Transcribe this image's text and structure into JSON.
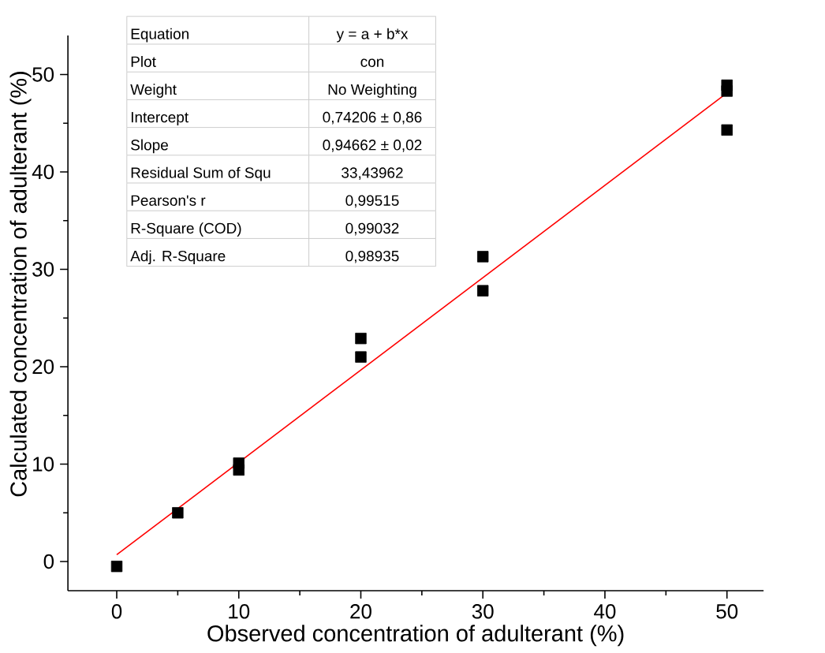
{
  "chart_data": {
    "type": "scatter",
    "xlabel": "Observed concentration of adulterant (%)",
    "ylabel": "Calculated concentration of adulterant (%)",
    "xlim": [
      -4,
      53
    ],
    "ylim": [
      -3,
      54
    ],
    "xticks": [
      0,
      10,
      20,
      30,
      40,
      50
    ],
    "yticks": [
      0,
      10,
      20,
      30,
      40,
      50
    ],
    "marker": "square",
    "series": [
      {
        "color": "#000000",
        "x": [
          0,
          5,
          10,
          10,
          20,
          20,
          30,
          30,
          50,
          50,
          50
        ],
        "values": [
          -0.5,
          5.0,
          10.1,
          9.4,
          22.9,
          21.0,
          31.3,
          27.8,
          48.9,
          48.3,
          44.3
        ]
      },
      {
        "type": "line",
        "marker": "none",
        "color": "#ff0000",
        "x": [
          0,
          50
        ],
        "values": [
          0.7,
          48.1
        ]
      }
    ],
    "annotations": [
      "Equation",
      "y = a + b*x",
      "Plot",
      "con",
      "Weight",
      "No Weighting",
      "Intercept",
      "0,74206 ± 0,86",
      "Slope",
      "0,94662 ± 0,02",
      "Residual Sum of Squ",
      "33,43962",
      "Pearson's r",
      "0,99515",
      "R-Square (COD)",
      "0,99032",
      "Adj. R-Square",
      "0,98935"
    ]
  }
}
